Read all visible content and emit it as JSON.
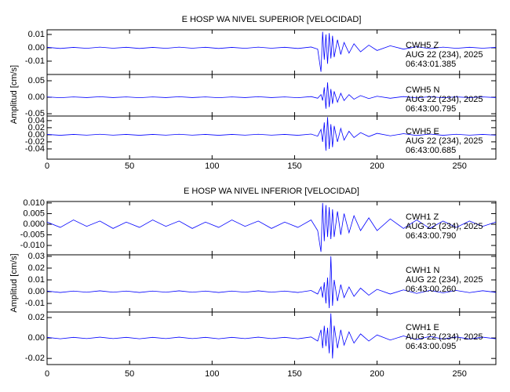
{
  "chart_data": [
    {
      "type": "line",
      "title": "E HOSP WA NIVEL SUPERIOR [VELOCIDAD]",
      "y_label": "Amplitud [cm/s]",
      "xlim": [
        0,
        272
      ],
      "xticks": [
        0,
        50,
        100,
        150,
        200,
        250
      ],
      "x": [
        0,
        8,
        16,
        24,
        32,
        40,
        48,
        56,
        64,
        72,
        80,
        88,
        96,
        104,
        112,
        120,
        128,
        136,
        144,
        152,
        160,
        164,
        166,
        167,
        168,
        169,
        170,
        171,
        172,
        173,
        174,
        176,
        178,
        180,
        183,
        186,
        190,
        195,
        200,
        208,
        216,
        224,
        232,
        240,
        248,
        256,
        264,
        272
      ],
      "panels": [
        {
          "station": "CWH5   Z",
          "date": "AUG 22 (234), 2025",
          "time": "06:43:01.385",
          "color": "#0000ff",
          "ylim": [
            -0.02,
            0.0135
          ],
          "yticks": [
            0.01,
            {
              "value": 0,
              "label": "0.00"
            },
            -0.01
          ],
          "values": [
            0.0004,
            -0.0005,
            0.0003,
            -0.0004,
            0.0005,
            -0.0003,
            0.0004,
            -0.0005,
            0.0003,
            -0.0004,
            0.0005,
            -0.0003,
            0.0004,
            -0.0005,
            0.0003,
            -0.0004,
            0.0005,
            -0.0003,
            0.0004,
            -0.0005,
            0.0006,
            -0.001,
            -0.018,
            0.012,
            -0.009,
            0.01,
            -0.012,
            0.011,
            -0.008,
            0.009,
            -0.007,
            0.006,
            -0.005,
            0.004,
            -0.004,
            0.003,
            -0.003,
            0.002,
            -0.002,
            0.0015,
            -0.001,
            0.0008,
            -0.0006,
            0.0005,
            -0.0004,
            0.0004,
            -0.0003,
            0.0003
          ]
        },
        {
          "station": "CWH5   N",
          "date": "AUG 22 (234), 2025",
          "time": "06:43:00.795",
          "color": "#0000ff",
          "ylim": [
            -0.057,
            0.069
          ],
          "yticks": [
            0.05,
            {
              "value": 0,
              "label": "0.00"
            },
            -0.05
          ],
          "values": [
            0.001,
            -0.0015,
            0.001,
            -0.001,
            0.0015,
            -0.001,
            0.001,
            -0.0015,
            0.001,
            -0.001,
            0.0015,
            -0.001,
            0.001,
            -0.0015,
            0.001,
            -0.001,
            0.0015,
            -0.001,
            0.001,
            -0.0015,
            0.002,
            -0.003,
            0.008,
            -0.01,
            0.03,
            -0.035,
            0.045,
            -0.03,
            0.025,
            -0.02,
            0.018,
            -0.015,
            0.012,
            -0.01,
            0.008,
            -0.006,
            0.005,
            -0.004,
            0.003,
            -0.003,
            0.002,
            -0.002,
            0.0015,
            -0.0015,
            0.001,
            -0.001,
            0.001,
            -0.001
          ]
        },
        {
          "station": "CWH5   E",
          "date": "AUG 22 (234), 2025",
          "time": "06:43:00.685",
          "color": "#0000ff",
          "ylim": [
            -0.069,
            0.053
          ],
          "yticks": [
            {
              "value": 0.04,
              "label": "0.04"
            },
            {
              "value": 0.02,
              "label": "0.02"
            },
            {
              "value": 0,
              "label": "0.00"
            },
            {
              "value": -0.02,
              "label": "-0.02"
            },
            {
              "value": -0.04,
              "label": "-0.04"
            }
          ],
          "values": [
            0.001,
            -0.0015,
            0.001,
            -0.001,
            0.0015,
            -0.001,
            0.001,
            -0.0015,
            0.001,
            -0.001,
            0.0015,
            -0.001,
            0.001,
            -0.0015,
            0.001,
            -0.001,
            0.0015,
            -0.001,
            0.001,
            -0.0015,
            0.002,
            -0.004,
            0.015,
            -0.02,
            0.035,
            -0.045,
            0.05,
            -0.04,
            0.03,
            -0.035,
            0.025,
            -0.02,
            0.018,
            -0.015,
            0.01,
            -0.008,
            0.006,
            -0.005,
            0.004,
            -0.003,
            0.003,
            -0.002,
            0.002,
            -0.0015,
            0.0015,
            -0.001,
            0.001,
            -0.001
          ]
        }
      ]
    },
    {
      "type": "line",
      "title": "E HOSP WA NIVEL INFERIOR [VELOCIDAD]",
      "y_label": "Amplitud [cm/s]",
      "xlim": [
        0,
        272
      ],
      "xticks": [
        0,
        50,
        100,
        150,
        200,
        250
      ],
      "x": [
        0,
        8,
        16,
        24,
        32,
        40,
        48,
        56,
        64,
        72,
        80,
        88,
        96,
        104,
        112,
        120,
        128,
        136,
        144,
        152,
        160,
        164,
        166,
        167,
        168,
        169,
        170,
        171,
        172,
        173,
        174,
        176,
        178,
        180,
        183,
        186,
        190,
        195,
        200,
        208,
        216,
        224,
        232,
        240,
        248,
        256,
        264,
        272
      ],
      "panels": [
        {
          "station": "CWH1   Z",
          "date": "AUG 22 (234), 2025",
          "time": "06:43:00.790",
          "color": "#0000ff",
          "ylim": [
            -0.0144,
            0.0107
          ],
          "yticks": [
            {
              "value": 0.01,
              "label": "0.010"
            },
            {
              "value": 0.005,
              "label": "0.005"
            },
            {
              "value": 0,
              "label": "0.000"
            },
            {
              "value": -0.005,
              "label": "-0.005"
            },
            {
              "value": -0.01,
              "label": "-0.010"
            }
          ],
          "values": [
            0.001,
            -0.0015,
            0.002,
            -0.001,
            0.0015,
            -0.002,
            0.001,
            -0.0015,
            0.002,
            -0.001,
            0.0015,
            -0.002,
            0.001,
            -0.0015,
            0.002,
            -0.001,
            0.0015,
            -0.002,
            0.001,
            -0.0015,
            0.002,
            -0.003,
            -0.013,
            0.01,
            -0.008,
            0.009,
            -0.006,
            0.008,
            -0.007,
            0.007,
            -0.006,
            0.006,
            -0.005,
            0.005,
            -0.004,
            0.004,
            -0.003,
            0.003,
            -0.003,
            0.0025,
            -0.002,
            0.002,
            -0.002,
            0.0015,
            -0.0015,
            0.0015,
            -0.001,
            0.001
          ]
        },
        {
          "station": "CWH1   N",
          "date": "AUG 22 (234), 2025",
          "time": "06:43:00.260",
          "color": "#0000ff",
          "ylim": [
            -0.0173,
            0.0313
          ],
          "yticks": [
            {
              "value": 0.03,
              "label": "0.03"
            },
            {
              "value": 0.02,
              "label": "0.02"
            },
            {
              "value": 0.01,
              "label": "0.01"
            },
            {
              "value": 0,
              "label": "0.00"
            },
            {
              "value": -0.01,
              "label": "-0.01"
            }
          ],
          "values": [
            0.0005,
            -0.0007,
            0.0005,
            -0.0005,
            0.0007,
            -0.0005,
            0.0005,
            -0.0007,
            0.0005,
            -0.0005,
            0.0007,
            -0.0005,
            0.0005,
            -0.0007,
            0.0005,
            -0.0005,
            0.0007,
            -0.0005,
            0.0005,
            -0.0007,
            0.001,
            -0.002,
            0.004,
            -0.005,
            0.008,
            -0.01,
            0.012,
            -0.014,
            0.03,
            -0.012,
            0.01,
            -0.008,
            0.006,
            -0.005,
            0.004,
            -0.004,
            0.003,
            -0.003,
            0.002,
            -0.002,
            0.0015,
            -0.0015,
            0.001,
            -0.001,
            0.001,
            -0.0008,
            0.0008,
            -0.0006
          ]
        },
        {
          "station": "CWH1   E",
          "date": "AUG 22 (234), 2025",
          "time": "06:43:00.095",
          "color": "#0000ff",
          "ylim": [
            -0.026,
            0.0254
          ],
          "yticks": [
            {
              "value": 0.02,
              "label": "0.02"
            },
            {
              "value": 0,
              "label": "0.00"
            },
            {
              "value": -0.02,
              "label": "-0.02"
            }
          ],
          "values": [
            0.0006,
            -0.0008,
            0.0006,
            -0.0006,
            0.0008,
            -0.0006,
            0.0006,
            -0.0008,
            0.0006,
            -0.0006,
            0.0008,
            -0.0006,
            0.0006,
            -0.0008,
            0.0006,
            -0.0006,
            0.0008,
            -0.0006,
            0.0006,
            -0.0008,
            0.001,
            -0.003,
            0.008,
            -0.01,
            0.012,
            -0.008,
            0.01,
            -0.015,
            0.024,
            -0.02,
            0.012,
            -0.01,
            0.008,
            -0.007,
            0.006,
            -0.005,
            0.004,
            -0.003,
            0.003,
            -0.002,
            0.002,
            -0.0015,
            0.0015,
            -0.001,
            0.001,
            -0.001,
            0.0008,
            -0.0008
          ]
        }
      ]
    }
  ]
}
